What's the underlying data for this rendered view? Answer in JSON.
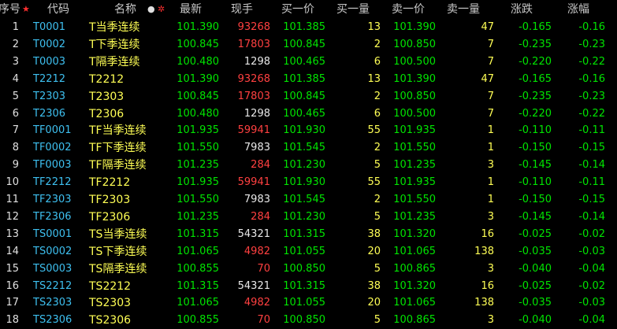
{
  "table": {
    "header": [
      "序号",
      "代码",
      "名称",
      "最新",
      "现手",
      "买一价",
      "买一量",
      "卖一价",
      "卖一量",
      "涨跌",
      "涨幅"
    ],
    "column_colors": [
      "#e0e0e0",
      "#3ec0f0",
      "#ffff55",
      "#00e400",
      "#ff4040",
      "#00e400",
      "#ffff55",
      "#00e400",
      "#ffff55",
      "#00e400",
      "#00e400"
    ],
    "volume_colors": [
      "#ff4040",
      "#ff4040",
      "#e8e8e8",
      "#ff4040",
      "#ff4040",
      "#e8e8e8",
      "#ff4040",
      "#e8e8e8",
      "#ff4040",
      "#ff4040",
      "#e8e8e8",
      "#ff4040",
      "#e8e8e8",
      "#ff4040",
      "#ff4040",
      "#e8e8e8",
      "#ff4040",
      "#ff4040"
    ],
    "rows": [
      [
        "1",
        "T0001",
        "T当季连续",
        "101.390",
        "93268",
        "101.385",
        "13",
        "101.390",
        "47",
        "-0.165",
        "-0.16"
      ],
      [
        "2",
        "T0002",
        "T下季连续",
        "100.845",
        "17803",
        "100.845",
        "2",
        "100.850",
        "7",
        "-0.235",
        "-0.23"
      ],
      [
        "3",
        "T0003",
        "T隔季连续",
        "100.480",
        "1298",
        "100.465",
        "6",
        "100.500",
        "7",
        "-0.220",
        "-0.22"
      ],
      [
        "4",
        "T2212",
        "T2212",
        "101.390",
        "93268",
        "101.385",
        "13",
        "101.390",
        "47",
        "-0.165",
        "-0.16"
      ],
      [
        "5",
        "T2303",
        "T2303",
        "100.845",
        "17803",
        "100.845",
        "2",
        "100.850",
        "7",
        "-0.235",
        "-0.23"
      ],
      [
        "6",
        "T2306",
        "T2306",
        "100.480",
        "1298",
        "100.465",
        "6",
        "100.500",
        "7",
        "-0.220",
        "-0.22"
      ],
      [
        "7",
        "TF0001",
        "TF当季连续",
        "101.935",
        "59941",
        "101.930",
        "55",
        "101.935",
        "1",
        "-0.110",
        "-0.11"
      ],
      [
        "8",
        "TF0002",
        "TF下季连续",
        "101.550",
        "7983",
        "101.545",
        "2",
        "101.550",
        "1",
        "-0.150",
        "-0.15"
      ],
      [
        "9",
        "TF0003",
        "TF隔季连续",
        "101.235",
        "284",
        "101.230",
        "5",
        "101.235",
        "3",
        "-0.145",
        "-0.14"
      ],
      [
        "10",
        "TF2212",
        "TF2212",
        "101.935",
        "59941",
        "101.930",
        "55",
        "101.935",
        "1",
        "-0.110",
        "-0.11"
      ],
      [
        "11",
        "TF2303",
        "TF2303",
        "101.550",
        "7983",
        "101.545",
        "2",
        "101.550",
        "1",
        "-0.150",
        "-0.15"
      ],
      [
        "12",
        "TF2306",
        "TF2306",
        "101.235",
        "284",
        "101.230",
        "5",
        "101.235",
        "3",
        "-0.145",
        "-0.14"
      ],
      [
        "13",
        "TS0001",
        "TS当季连续",
        "101.315",
        "54321",
        "101.315",
        "38",
        "101.320",
        "16",
        "-0.025",
        "-0.02"
      ],
      [
        "14",
        "TS0002",
        "TS下季连续",
        "101.065",
        "4982",
        "101.055",
        "20",
        "101.065",
        "138",
        "-0.035",
        "-0.03"
      ],
      [
        "15",
        "TS0003",
        "TS隔季连续",
        "100.855",
        "70",
        "100.850",
        "5",
        "100.865",
        "3",
        "-0.040",
        "-0.04"
      ],
      [
        "16",
        "TS2212",
        "TS2212",
        "101.315",
        "54321",
        "101.315",
        "38",
        "101.320",
        "16",
        "-0.025",
        "-0.02"
      ],
      [
        "17",
        "TS2303",
        "TS2303",
        "101.065",
        "4982",
        "101.055",
        "20",
        "101.065",
        "138",
        "-0.035",
        "-0.03"
      ],
      [
        "18",
        "TS2306",
        "TS2306",
        "100.855",
        "70",
        "100.850",
        "5",
        "100.865",
        "3",
        "-0.040",
        "-0.04"
      ]
    ]
  }
}
